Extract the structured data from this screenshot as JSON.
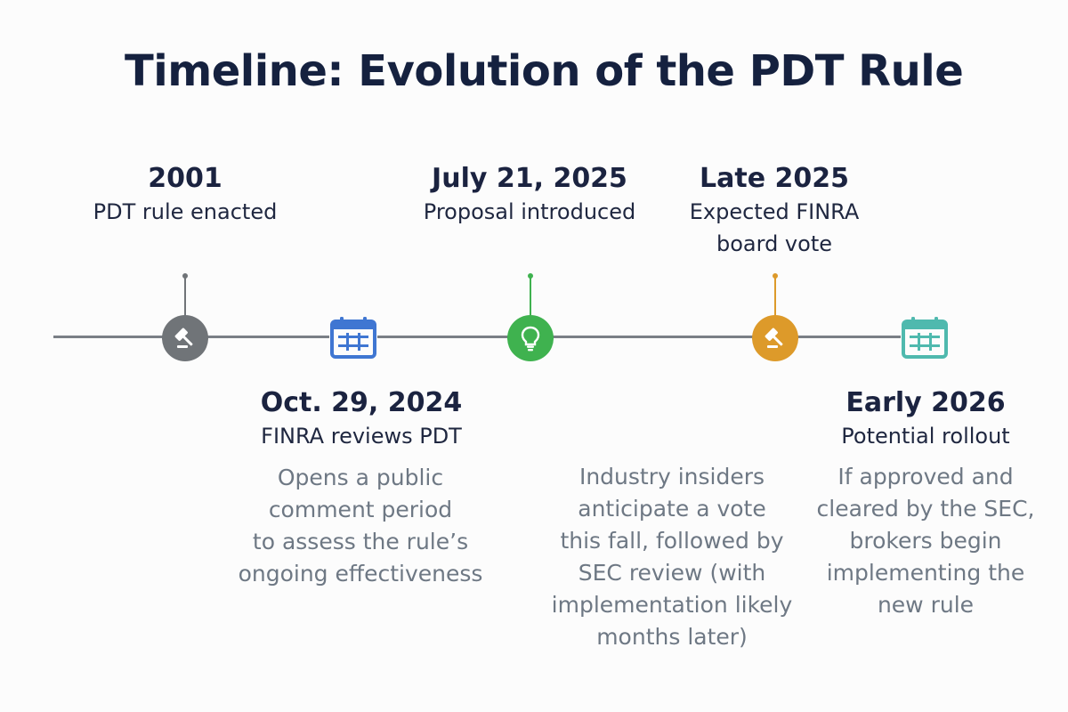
{
  "title": "Timeline: Evolution of the PDT Rule",
  "colors": {
    "line": "#7a7f86",
    "gray": "#707478",
    "blue": "#3f76d2",
    "green": "#3fb24f",
    "gold": "#dd9a2a",
    "teal": "#4fb9ae"
  },
  "events": [
    {
      "date": "2001",
      "subtitle": "PDT rule enacted",
      "icon": "gavel-icon",
      "description": []
    },
    {
      "date": "Oct. 29, 2024",
      "subtitle": "FINRA reviews PDT",
      "icon": "calendar-icon",
      "description": [
        "Opens a public",
        "comment period",
        "to assess the rule’s",
        "ongoing effectiveness"
      ]
    },
    {
      "date": "July 21, 2025",
      "subtitle": "Proposal introduced",
      "icon": "lightbulb-icon",
      "description": []
    },
    {
      "date": "Late 2025",
      "subtitle_lines": [
        "Expected FINRA",
        "board vote"
      ],
      "icon": "gavel-icon",
      "description": [
        "Industry insiders",
        "anticipate a vote",
        "this fall, followed by",
        "SEC review (with",
        "implementation likely",
        "months later)"
      ]
    },
    {
      "date": "Early 2026",
      "subtitle": "Potential rollout",
      "icon": "calendar-icon",
      "description": [
        "If approved and",
        "cleared by the SEC,",
        "brokers begin",
        "implementing the",
        "new rule"
      ]
    }
  ]
}
